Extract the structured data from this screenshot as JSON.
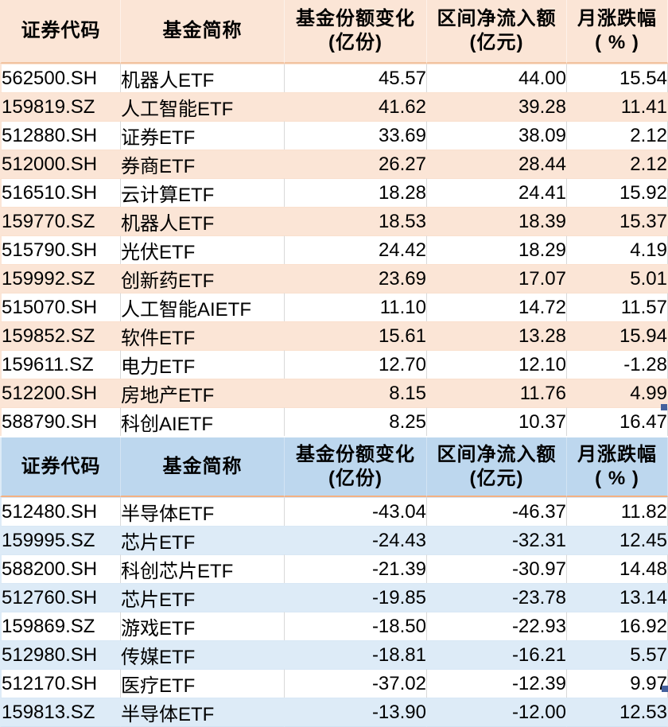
{
  "theme": {
    "orange_fill": "#FBE5D6",
    "orange_header_rule": "#F2C3A0",
    "blue_header_fill": "#BDD7EE",
    "blue_row_fill": "#DDEBF7",
    "blue_header_rule_orange": "#F4B183",
    "grid_vertical": "#D9D9D9",
    "fill_handle_color": "#44619D",
    "text_color": "#000000"
  },
  "header_labels": {
    "code": "证券代码",
    "name": "基金简称",
    "share_l1": "基金份额变化",
    "share_l2": "(亿份)",
    "inflow_l1": "区间净流入额",
    "inflow_l2": "(亿元)",
    "change_l1": "月涨跌幅",
    "change_l2": "( % )"
  },
  "chart_data": [
    {
      "type": "table",
      "name": "share-increase-table",
      "theme": "orange",
      "columns": [
        "证券代码",
        "基金简称",
        "基金份额变化(亿份)",
        "区间净流入额(亿元)",
        "月涨跌幅( % )"
      ],
      "rows": [
        [
          "562500.SH",
          "机器人ETF",
          "45.57",
          "44.00",
          "15.54"
        ],
        [
          "159819.SZ",
          "人工智能ETF",
          "41.62",
          "39.28",
          "11.41"
        ],
        [
          "512880.SH",
          "证券ETF",
          "33.69",
          "38.09",
          "2.12"
        ],
        [
          "512000.SH",
          "券商ETF",
          "26.27",
          "28.44",
          "2.12"
        ],
        [
          "516510.SH",
          "云计算ETF",
          "18.28",
          "24.41",
          "15.92"
        ],
        [
          "159770.SZ",
          "机器人ETF",
          "18.53",
          "18.39",
          "15.37"
        ],
        [
          "515790.SH",
          "光伏ETF",
          "24.42",
          "18.29",
          "4.19"
        ],
        [
          "159992.SZ",
          "创新药ETF",
          "23.69",
          "17.07",
          "5.01"
        ],
        [
          "515070.SH",
          "人工智能AIETF",
          "11.10",
          "14.72",
          "11.57"
        ],
        [
          "159852.SZ",
          "软件ETF",
          "15.61",
          "13.28",
          "15.94"
        ],
        [
          "159611.SZ",
          "电力ETF",
          "12.70",
          "12.10",
          "-1.28"
        ],
        [
          "512200.SH",
          "房地产ETF",
          "8.15",
          "11.76",
          "4.99"
        ],
        [
          "588790.SH",
          "科创AIETF",
          "8.25",
          "10.37",
          "16.47"
        ]
      ]
    },
    {
      "type": "table",
      "name": "share-decrease-table",
      "theme": "blue",
      "columns": [
        "证券代码",
        "基金简称",
        "基金份额变化(亿份)",
        "区间净流入额(亿元)",
        "月涨跌幅( % )"
      ],
      "rows": [
        [
          "512480.SH",
          "半导体ETF",
          "-43.04",
          "-46.37",
          "11.82"
        ],
        [
          "159995.SZ",
          "芯片ETF",
          "-24.43",
          "-32.31",
          "12.45"
        ],
        [
          "588200.SH",
          "科创芯片ETF",
          "-21.39",
          "-30.97",
          "14.48"
        ],
        [
          "512760.SH",
          "芯片ETF",
          "-19.85",
          "-23.78",
          "13.14"
        ],
        [
          "159869.SZ",
          "游戏ETF",
          "-18.50",
          "-22.93",
          "16.92"
        ],
        [
          "512980.SH",
          "传媒ETF",
          "-18.81",
          "-16.21",
          "5.57"
        ],
        [
          "512170.SH",
          "医疗ETF",
          "-37.02",
          "-12.39",
          "9.97"
        ],
        [
          "159813.SZ",
          "半导体ETF",
          "-13.90",
          "-12.00",
          "12.53"
        ]
      ]
    }
  ]
}
